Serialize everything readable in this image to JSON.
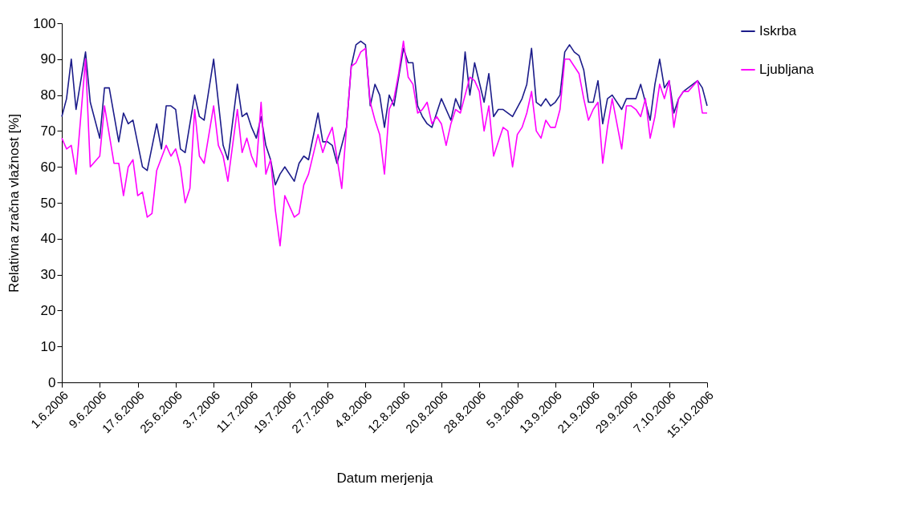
{
  "chart_data": {
    "type": "line",
    "xlabel": "Datum merjenja",
    "ylabel": "Relativna zračna vlažnost [%]",
    "legend": "right",
    "marker": "none",
    "line_style": "solid",
    "grid": false,
    "xlim": [
      "2006-06-01",
      "2006-10-15"
    ],
    "ylim": [
      0,
      100
    ],
    "yticks": [
      0,
      10,
      20,
      30,
      40,
      50,
      60,
      70,
      80,
      90,
      100
    ],
    "xticks": [
      {
        "value": "2006-06-01",
        "label": "1.6.2006"
      },
      {
        "value": "2006-06-09",
        "label": "9.6.2006"
      },
      {
        "value": "2006-06-17",
        "label": "17.6.2006"
      },
      {
        "value": "2006-06-25",
        "label": "25.6.2006"
      },
      {
        "value": "2006-07-03",
        "label": "3.7.2006"
      },
      {
        "value": "2006-07-11",
        "label": "11.7.2006"
      },
      {
        "value": "2006-07-19",
        "label": "19.7.2006"
      },
      {
        "value": "2006-07-27",
        "label": "27.7.2006"
      },
      {
        "value": "2006-08-04",
        "label": "4.8.2006"
      },
      {
        "value": "2006-08-12",
        "label": "12.8.2006"
      },
      {
        "value": "2006-08-20",
        "label": "20.8.2006"
      },
      {
        "value": "2006-08-28",
        "label": "28.8.2006"
      },
      {
        "value": "2006-09-05",
        "label": "5.9.2006"
      },
      {
        "value": "2006-09-13",
        "label": "13.9.2006"
      },
      {
        "value": "2006-09-21",
        "label": "21.9.2006"
      },
      {
        "value": "2006-09-29",
        "label": "29.9.2006"
      },
      {
        "value": "2006-10-07",
        "label": "7.10.2006"
      },
      {
        "value": "2006-10-15",
        "label": "15.10.2006"
      }
    ],
    "series": [
      {
        "name": "Iskrba",
        "color": "#1c1c8a",
        "x": [
          "2006-06-01",
          "2006-06-02",
          "2006-06-03",
          "2006-06-04",
          "2006-06-06",
          "2006-06-07",
          "2006-06-09",
          "2006-06-10",
          "2006-06-11",
          "2006-06-13",
          "2006-06-14",
          "2006-06-15",
          "2006-06-16",
          "2006-06-18",
          "2006-06-19",
          "2006-06-21",
          "2006-06-22",
          "2006-06-23",
          "2006-06-24",
          "2006-06-25",
          "2006-06-26",
          "2006-06-27",
          "2006-06-29",
          "2006-06-30",
          "2006-07-01",
          "2006-07-03",
          "2006-07-05",
          "2006-07-06",
          "2006-07-08",
          "2006-07-09",
          "2006-07-10",
          "2006-07-11",
          "2006-07-12",
          "2006-07-13",
          "2006-07-14",
          "2006-07-15",
          "2006-07-16",
          "2006-07-17",
          "2006-07-18",
          "2006-07-20",
          "2006-07-21",
          "2006-07-22",
          "2006-07-23",
          "2006-07-25",
          "2006-07-26",
          "2006-07-27",
          "2006-07-28",
          "2006-07-29",
          "2006-07-31",
          "2006-08-01",
          "2006-08-02",
          "2006-08-03",
          "2006-08-04",
          "2006-08-05",
          "2006-08-06",
          "2006-08-07",
          "2006-08-08",
          "2006-08-09",
          "2006-08-10",
          "2006-08-11",
          "2006-08-12",
          "2006-08-13",
          "2006-08-14",
          "2006-08-15",
          "2006-08-16",
          "2006-08-17",
          "2006-08-18",
          "2006-08-20",
          "2006-08-22",
          "2006-08-23",
          "2006-08-24",
          "2006-08-25",
          "2006-08-26",
          "2006-08-27",
          "2006-08-29",
          "2006-08-30",
          "2006-08-31",
          "2006-09-01",
          "2006-09-02",
          "2006-09-04",
          "2006-09-06",
          "2006-09-07",
          "2006-09-08",
          "2006-09-09",
          "2006-09-10",
          "2006-09-11",
          "2006-09-12",
          "2006-09-13",
          "2006-09-14",
          "2006-09-15",
          "2006-09-16",
          "2006-09-17",
          "2006-09-18",
          "2006-09-19",
          "2006-09-20",
          "2006-09-21",
          "2006-09-22",
          "2006-09-23",
          "2006-09-24",
          "2006-09-25",
          "2006-09-27",
          "2006-09-28",
          "2006-09-29",
          "2006-09-30",
          "2006-10-01",
          "2006-10-02",
          "2006-10-03",
          "2006-10-04",
          "2006-10-05",
          "2006-10-06",
          "2006-10-07",
          "2006-10-08",
          "2006-10-09",
          "2006-10-10",
          "2006-10-11",
          "2006-10-13",
          "2006-10-14",
          "2006-10-15"
        ],
        "values": [
          74,
          79,
          90,
          76,
          92,
          78,
          68,
          82,
          82,
          67,
          75,
          72,
          73,
          60,
          59,
          72,
          65,
          77,
          77,
          76,
          65,
          64,
          80,
          74,
          73,
          90,
          66,
          62,
          83,
          74,
          75,
          71,
          68,
          74,
          66,
          62,
          55,
          58,
          60,
          56,
          61,
          63,
          62,
          75,
          67,
          67,
          66,
          61,
          71,
          88,
          94,
          95,
          94,
          77,
          83,
          80,
          71,
          80,
          77,
          85,
          93,
          89,
          89,
          77,
          74,
          72,
          71,
          79,
          73,
          79,
          76,
          92,
          80,
          89,
          78,
          86,
          74,
          76,
          76,
          74,
          79,
          83,
          93,
          78,
          77,
          79,
          77,
          78,
          80,
          92,
          94,
          92,
          91,
          87,
          78,
          78,
          84,
          72,
          79,
          80,
          76,
          79,
          79,
          79,
          83,
          78,
          73,
          83,
          90,
          82,
          84,
          75,
          79,
          81,
          82,
          84,
          82,
          77
        ]
      },
      {
        "name": "Ljubljana",
        "color": "#ff00ff",
        "x": [
          "2006-06-01",
          "2006-06-02",
          "2006-06-03",
          "2006-06-04",
          "2006-06-06",
          "2006-06-07",
          "2006-06-09",
          "2006-06-10",
          "2006-06-12",
          "2006-06-13",
          "2006-06-14",
          "2006-06-15",
          "2006-06-16",
          "2006-06-17",
          "2006-06-18",
          "2006-06-19",
          "2006-06-20",
          "2006-06-21",
          "2006-06-23",
          "2006-06-24",
          "2006-06-25",
          "2006-06-26",
          "2006-06-27",
          "2006-06-28",
          "2006-06-29",
          "2006-06-30",
          "2006-07-01",
          "2006-07-03",
          "2006-07-04",
          "2006-07-05",
          "2006-07-06",
          "2006-07-08",
          "2006-07-09",
          "2006-07-10",
          "2006-07-11",
          "2006-07-12",
          "2006-07-13",
          "2006-07-14",
          "2006-07-15",
          "2006-07-16",
          "2006-07-17",
          "2006-07-18",
          "2006-07-20",
          "2006-07-21",
          "2006-07-22",
          "2006-07-23",
          "2006-07-25",
          "2006-07-26",
          "2006-07-27",
          "2006-07-28",
          "2006-07-30",
          "2006-07-31",
          "2006-08-01",
          "2006-08-02",
          "2006-08-03",
          "2006-08-04",
          "2006-08-05",
          "2006-08-06",
          "2006-08-07",
          "2006-08-08",
          "2006-08-09",
          "2006-08-10",
          "2006-08-11",
          "2006-08-12",
          "2006-08-13",
          "2006-08-14",
          "2006-08-15",
          "2006-08-16",
          "2006-08-17",
          "2006-08-18",
          "2006-08-19",
          "2006-08-20",
          "2006-08-21",
          "2006-08-22",
          "2006-08-23",
          "2006-08-24",
          "2006-08-26",
          "2006-08-27",
          "2006-08-28",
          "2006-08-29",
          "2006-08-30",
          "2006-08-31",
          "2006-09-01",
          "2006-09-02",
          "2006-09-03",
          "2006-09-04",
          "2006-09-05",
          "2006-09-06",
          "2006-09-07",
          "2006-09-08",
          "2006-09-09",
          "2006-09-10",
          "2006-09-11",
          "2006-09-12",
          "2006-09-13",
          "2006-09-14",
          "2006-09-15",
          "2006-09-16",
          "2006-09-17",
          "2006-09-18",
          "2006-09-19",
          "2006-09-20",
          "2006-09-21",
          "2006-09-22",
          "2006-09-23",
          "2006-09-24",
          "2006-09-25",
          "2006-09-27",
          "2006-09-28",
          "2006-09-29",
          "2006-09-30",
          "2006-10-01",
          "2006-10-02",
          "2006-10-03",
          "2006-10-04",
          "2006-10-05",
          "2006-10-06",
          "2006-10-07",
          "2006-10-08",
          "2006-10-09",
          "2006-10-10",
          "2006-10-11",
          "2006-10-13",
          "2006-10-14",
          "2006-10-15"
        ],
        "values": [
          68,
          65,
          66,
          58,
          90,
          60,
          63,
          77,
          61,
          61,
          52,
          60,
          62,
          52,
          53,
          46,
          47,
          59,
          66,
          63,
          65,
          60,
          50,
          54,
          76,
          63,
          61,
          77,
          66,
          63,
          56,
          76,
          64,
          68,
          63,
          60,
          78,
          58,
          62,
          48,
          38,
          52,
          46,
          47,
          55,
          58,
          69,
          64,
          68,
          71,
          54,
          71,
          88,
          89,
          92,
          93,
          78,
          73,
          69,
          58,
          76,
          79,
          86,
          95,
          85,
          83,
          75,
          76,
          78,
          72,
          74,
          72,
          66,
          72,
          76,
          75,
          85,
          84,
          81,
          70,
          77,
          63,
          67,
          71,
          70,
          60,
          69,
          71,
          75,
          81,
          70,
          68,
          73,
          71,
          71,
          76,
          90,
          90,
          88,
          86,
          79,
          73,
          76,
          78,
          61,
          71,
          79,
          65,
          77,
          77,
          76,
          74,
          79,
          68,
          74,
          83,
          79,
          84,
          71,
          79,
          81,
          81,
          84,
          75,
          75
        ]
      }
    ]
  }
}
